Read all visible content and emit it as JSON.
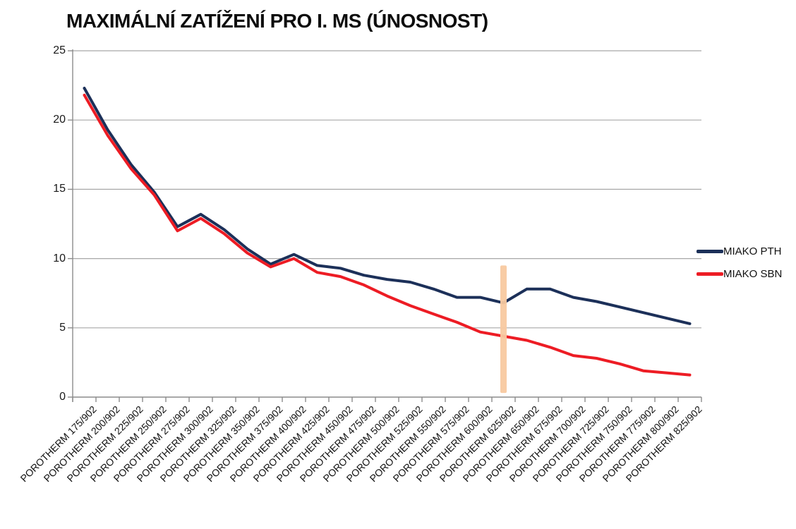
{
  "title": "MAXIMÁLNÍ ZATÍŽENÍ PRO I. MS (ÚNOSNOST)",
  "legend": {
    "position": "right",
    "items": [
      {
        "label": "MIAKO PTH",
        "color": "#1c3059"
      },
      {
        "label": "MIAKO SBN",
        "color": "#ed1c24"
      }
    ]
  },
  "colors": {
    "background": "#ffffff",
    "gridline": "#a8a8a8",
    "axis": "#8c8c8c",
    "series_pth": "#1c3059",
    "series_sbn": "#ed1c24",
    "highlight_bar": "#f8c9a0",
    "text": "#111111"
  },
  "chart_data": {
    "type": "line",
    "title": "MAXIMÁLNÍ ZATÍŽENÍ PRO I. MS (ÚNOSNOST)",
    "xlabel": "",
    "ylabel": "",
    "ylim": [
      0,
      25
    ],
    "yticks": [
      0,
      5,
      10,
      15,
      20,
      25
    ],
    "grid": true,
    "legend_position": "right",
    "categories": [
      "POROTHERM 175/902",
      "POROTHERM 200/902",
      "POROTHERM 225/902",
      "POROTHERM 250/902",
      "POROTHERM 275/902",
      "POROTHERM 300/902",
      "POROTHERM 325/902",
      "POROTHERM 350/902",
      "POROTHERM 375/902",
      "POROTHERM 400/902",
      "POROTHERM 425/902",
      "POROTHERM 450/902",
      "POROTHERM 475/902",
      "POROTHERM 500/902",
      "POROTHERM 525/902",
      "POROTHERM 550/902",
      "POROTHERM 575/902",
      "POROTHERM 600/902",
      "POROTHERM 625/902",
      "POROTHERM 650/902",
      "POROTHERM 675/902",
      "POROTHERM 700/902",
      "POROTHERM 725/902",
      "POROTHERM 750/902",
      "POROTHERM 775/902",
      "POROTHERM 800/902",
      "POROTHERM 825/902"
    ],
    "series": [
      {
        "name": "MIAKO PTH",
        "color": "#1c3059",
        "values": [
          22.3,
          19.3,
          16.8,
          14.8,
          12.3,
          13.2,
          12.1,
          10.7,
          9.6,
          10.3,
          9.5,
          9.3,
          8.8,
          8.5,
          8.3,
          7.8,
          7.2,
          7.2,
          6.8,
          7.8,
          7.8,
          7.2,
          6.9,
          6.5,
          6.1,
          5.7,
          5.3
        ]
      },
      {
        "name": "MIAKO SBN",
        "color": "#ed1c24",
        "values": [
          21.8,
          18.9,
          16.5,
          14.6,
          12.0,
          12.9,
          11.8,
          10.4,
          9.4,
          10.0,
          9.0,
          8.7,
          8.1,
          7.3,
          6.6,
          6.0,
          5.4,
          4.7,
          4.4,
          4.1,
          3.6,
          3.0,
          2.8,
          2.4,
          1.9,
          1.75,
          1.6
        ]
      }
    ],
    "annotation": {
      "type": "vertical-highlight-bar",
      "category": "POROTHERM 625/902",
      "category_index": 18,
      "value_top": 9.5,
      "value_bottom": 0.3,
      "color": "#f8c9a0"
    }
  }
}
